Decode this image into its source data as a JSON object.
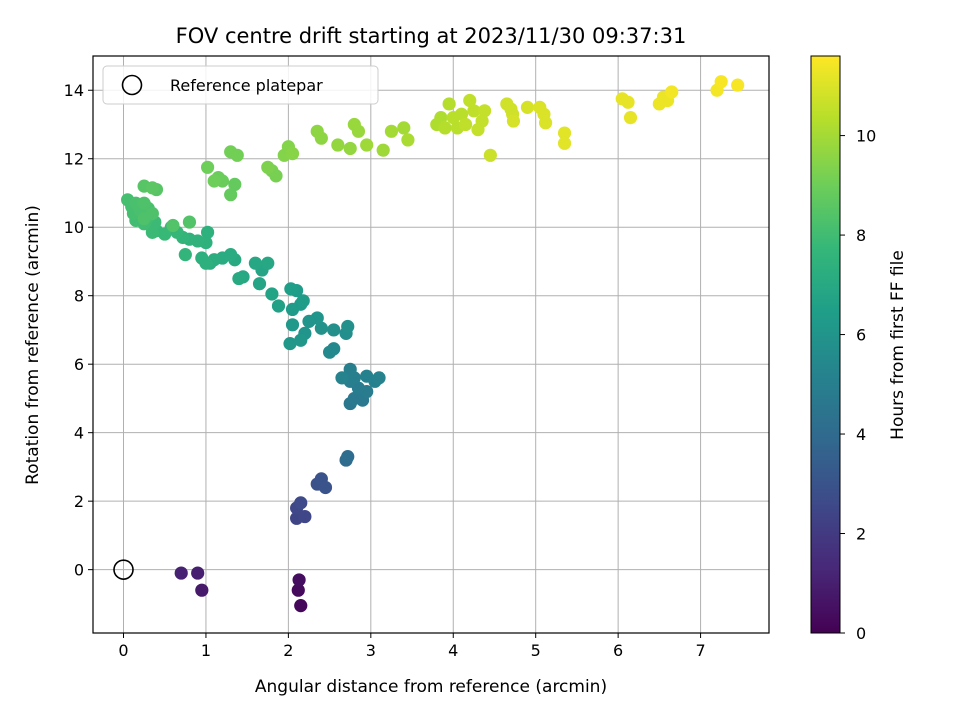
{
  "chart_data": {
    "type": "scatter",
    "title": "FOV centre drift starting at 2023/11/30 09:37:31",
    "xlabel": "Angular distance from reference (arcmin)",
    "ylabel": "Rotation from reference (arcmin)",
    "xlim": [
      -0.37,
      7.83
    ],
    "ylim": [
      -1.85,
      15.0
    ],
    "xticks": [
      0,
      1,
      2,
      3,
      4,
      5,
      6,
      7
    ],
    "yticks": [
      0,
      2,
      4,
      6,
      8,
      10,
      12,
      14
    ],
    "grid": true,
    "legend": {
      "position": "top-left",
      "entries": [
        "Reference platepar"
      ]
    },
    "reference_point": {
      "label": "Reference platepar",
      "x": 0,
      "y": 0,
      "marker": "open-circle"
    },
    "colorbar": {
      "label": "Hours from first FF file",
      "range": [
        0,
        11.6
      ],
      "ticks": [
        0,
        2,
        4,
        6,
        8,
        10
      ],
      "colormap": "viridis"
    },
    "series": [
      {
        "colored_by": "Hours from first FF file",
        "points": [
          [
            2.15,
            -1.05,
            0.2
          ],
          [
            2.12,
            -0.6,
            0.3
          ],
          [
            2.13,
            -0.3,
            0.4
          ],
          [
            0.95,
            -0.6,
            0.8
          ],
          [
            0.9,
            -0.1,
            1.0
          ],
          [
            0.7,
            -0.1,
            1.1
          ],
          [
            2.1,
            1.5,
            2.4
          ],
          [
            2.1,
            1.8,
            2.5
          ],
          [
            2.15,
            1.95,
            2.6
          ],
          [
            2.2,
            1.55,
            2.5
          ],
          [
            2.35,
            2.5,
            2.9
          ],
          [
            2.4,
            2.65,
            3.0
          ],
          [
            2.45,
            2.4,
            3.0
          ],
          [
            2.7,
            3.2,
            4.0
          ],
          [
            2.72,
            3.3,
            4.1
          ],
          [
            2.75,
            4.85,
            4.6
          ],
          [
            2.8,
            5.0,
            4.7
          ],
          [
            2.9,
            4.95,
            4.7
          ],
          [
            2.95,
            5.2,
            4.8
          ],
          [
            2.85,
            5.3,
            4.8
          ],
          [
            2.75,
            5.5,
            4.9
          ],
          [
            2.75,
            5.85,
            5.0
          ],
          [
            2.8,
            5.6,
            5.0
          ],
          [
            2.95,
            5.65,
            5.1
          ],
          [
            3.05,
            5.5,
            5.1
          ],
          [
            3.1,
            5.6,
            5.2
          ],
          [
            2.65,
            5.6,
            5.2
          ],
          [
            2.5,
            6.35,
            5.5
          ],
          [
            2.55,
            6.45,
            5.5
          ],
          [
            2.7,
            6.9,
            5.7
          ],
          [
            2.72,
            7.1,
            5.8
          ],
          [
            2.55,
            7.0,
            5.8
          ],
          [
            2.4,
            7.05,
            5.9
          ],
          [
            2.35,
            7.35,
            6.0
          ],
          [
            2.25,
            7.25,
            6.0
          ],
          [
            2.2,
            6.9,
            6.0
          ],
          [
            2.15,
            6.7,
            6.1
          ],
          [
            2.02,
            6.6,
            6.1
          ],
          [
            2.05,
            7.15,
            6.2
          ],
          [
            2.15,
            7.75,
            6.3
          ],
          [
            2.1,
            8.15,
            6.4
          ],
          [
            2.05,
            7.6,
            6.3
          ],
          [
            2.18,
            7.85,
            6.4
          ],
          [
            2.03,
            8.2,
            6.5
          ],
          [
            1.88,
            7.7,
            6.6
          ],
          [
            1.8,
            8.05,
            6.7
          ],
          [
            1.65,
            8.35,
            6.8
          ],
          [
            1.68,
            8.75,
            6.8
          ],
          [
            1.75,
            8.95,
            6.9
          ],
          [
            1.6,
            8.95,
            6.9
          ],
          [
            1.45,
            8.55,
            6.9
          ],
          [
            1.4,
            8.5,
            7.0
          ],
          [
            1.35,
            9.05,
            7.0
          ],
          [
            1.3,
            9.2,
            7.1
          ],
          [
            1.2,
            9.1,
            7.1
          ],
          [
            1.1,
            9.05,
            7.2
          ],
          [
            1.05,
            8.95,
            7.2
          ],
          [
            1.0,
            8.95,
            7.3
          ],
          [
            0.95,
            9.1,
            7.3
          ],
          [
            1.0,
            9.55,
            7.4
          ],
          [
            1.02,
            9.85,
            7.4
          ],
          [
            0.9,
            9.6,
            7.5
          ],
          [
            0.8,
            9.65,
            7.5
          ],
          [
            0.75,
            9.2,
            7.6
          ],
          [
            0.72,
            9.7,
            7.6
          ],
          [
            0.65,
            9.85,
            7.7
          ],
          [
            0.58,
            10.0,
            7.7
          ],
          [
            0.5,
            9.8,
            7.8
          ],
          [
            0.4,
            9.9,
            7.8
          ],
          [
            0.35,
            9.85,
            7.9
          ],
          [
            0.38,
            10.15,
            7.9
          ],
          [
            0.3,
            10.3,
            8.0
          ],
          [
            0.25,
            10.1,
            8.0
          ],
          [
            0.15,
            10.2,
            8.0
          ],
          [
            0.12,
            10.4,
            8.1
          ],
          [
            0.1,
            10.6,
            8.1
          ],
          [
            0.05,
            10.8,
            8.1
          ],
          [
            0.2,
            10.5,
            8.2
          ],
          [
            0.3,
            10.55,
            8.2
          ],
          [
            0.15,
            10.7,
            8.2
          ],
          [
            0.25,
            10.7,
            8.3
          ],
          [
            0.35,
            10.4,
            8.3
          ],
          [
            0.25,
            10.25,
            8.3
          ],
          [
            0.8,
            10.15,
            8.4
          ],
          [
            0.6,
            10.05,
            8.4
          ],
          [
            0.25,
            11.2,
            8.5
          ],
          [
            0.4,
            11.1,
            8.5
          ],
          [
            0.35,
            11.15,
            8.6
          ],
          [
            1.3,
            10.95,
            8.8
          ],
          [
            1.35,
            11.25,
            8.8
          ],
          [
            1.2,
            11.35,
            8.9
          ],
          [
            1.15,
            11.45,
            8.9
          ],
          [
            1.02,
            11.75,
            9.0
          ],
          [
            1.1,
            11.35,
            9.0
          ],
          [
            1.3,
            12.2,
            9.1
          ],
          [
            1.38,
            12.1,
            9.1
          ],
          [
            1.8,
            11.65,
            9.2
          ],
          [
            1.85,
            11.5,
            9.2
          ],
          [
            1.75,
            11.75,
            9.3
          ],
          [
            1.95,
            12.1,
            9.4
          ],
          [
            2.0,
            12.35,
            9.4
          ],
          [
            2.05,
            12.15,
            9.5
          ],
          [
            2.35,
            12.8,
            9.6
          ],
          [
            2.4,
            12.6,
            9.6
          ],
          [
            2.6,
            12.4,
            9.7
          ],
          [
            2.75,
            12.3,
            9.7
          ],
          [
            2.8,
            13.0,
            9.8
          ],
          [
            2.85,
            12.8,
            9.8
          ],
          [
            2.95,
            12.4,
            9.9
          ],
          [
            3.15,
            12.25,
            9.9
          ],
          [
            3.25,
            12.8,
            10.0
          ],
          [
            3.4,
            12.9,
            10.0
          ],
          [
            3.45,
            12.55,
            10.1
          ],
          [
            3.8,
            13.0,
            10.2
          ],
          [
            3.85,
            13.2,
            10.2
          ],
          [
            3.9,
            12.9,
            10.3
          ],
          [
            3.95,
            13.6,
            10.3
          ],
          [
            4.0,
            13.2,
            10.4
          ],
          [
            4.05,
            12.9,
            10.4
          ],
          [
            4.1,
            13.3,
            10.4
          ],
          [
            4.15,
            13.0,
            10.5
          ],
          [
            4.2,
            13.7,
            10.5
          ],
          [
            4.25,
            13.4,
            10.5
          ],
          [
            4.3,
            12.85,
            10.6
          ],
          [
            4.35,
            13.1,
            10.6
          ],
          [
            4.38,
            13.4,
            10.6
          ],
          [
            4.45,
            12.1,
            10.7
          ],
          [
            4.65,
            13.6,
            10.8
          ],
          [
            4.7,
            13.45,
            10.8
          ],
          [
            4.72,
            13.3,
            10.8
          ],
          [
            4.73,
            13.1,
            10.9
          ],
          [
            4.9,
            13.5,
            10.9
          ],
          [
            5.05,
            13.5,
            11.0
          ],
          [
            5.1,
            13.3,
            11.0
          ],
          [
            5.12,
            13.05,
            11.0
          ],
          [
            5.35,
            12.75,
            11.1
          ],
          [
            5.35,
            12.45,
            11.1
          ],
          [
            6.05,
            13.75,
            11.2
          ],
          [
            6.12,
            13.65,
            11.2
          ],
          [
            6.15,
            13.2,
            11.2
          ],
          [
            6.5,
            13.6,
            11.3
          ],
          [
            6.55,
            13.8,
            11.3
          ],
          [
            6.6,
            13.7,
            11.3
          ],
          [
            6.65,
            13.95,
            11.4
          ],
          [
            7.2,
            14.0,
            11.4
          ],
          [
            7.25,
            14.25,
            11.5
          ],
          [
            7.45,
            14.15,
            11.5
          ]
        ]
      }
    ]
  }
}
